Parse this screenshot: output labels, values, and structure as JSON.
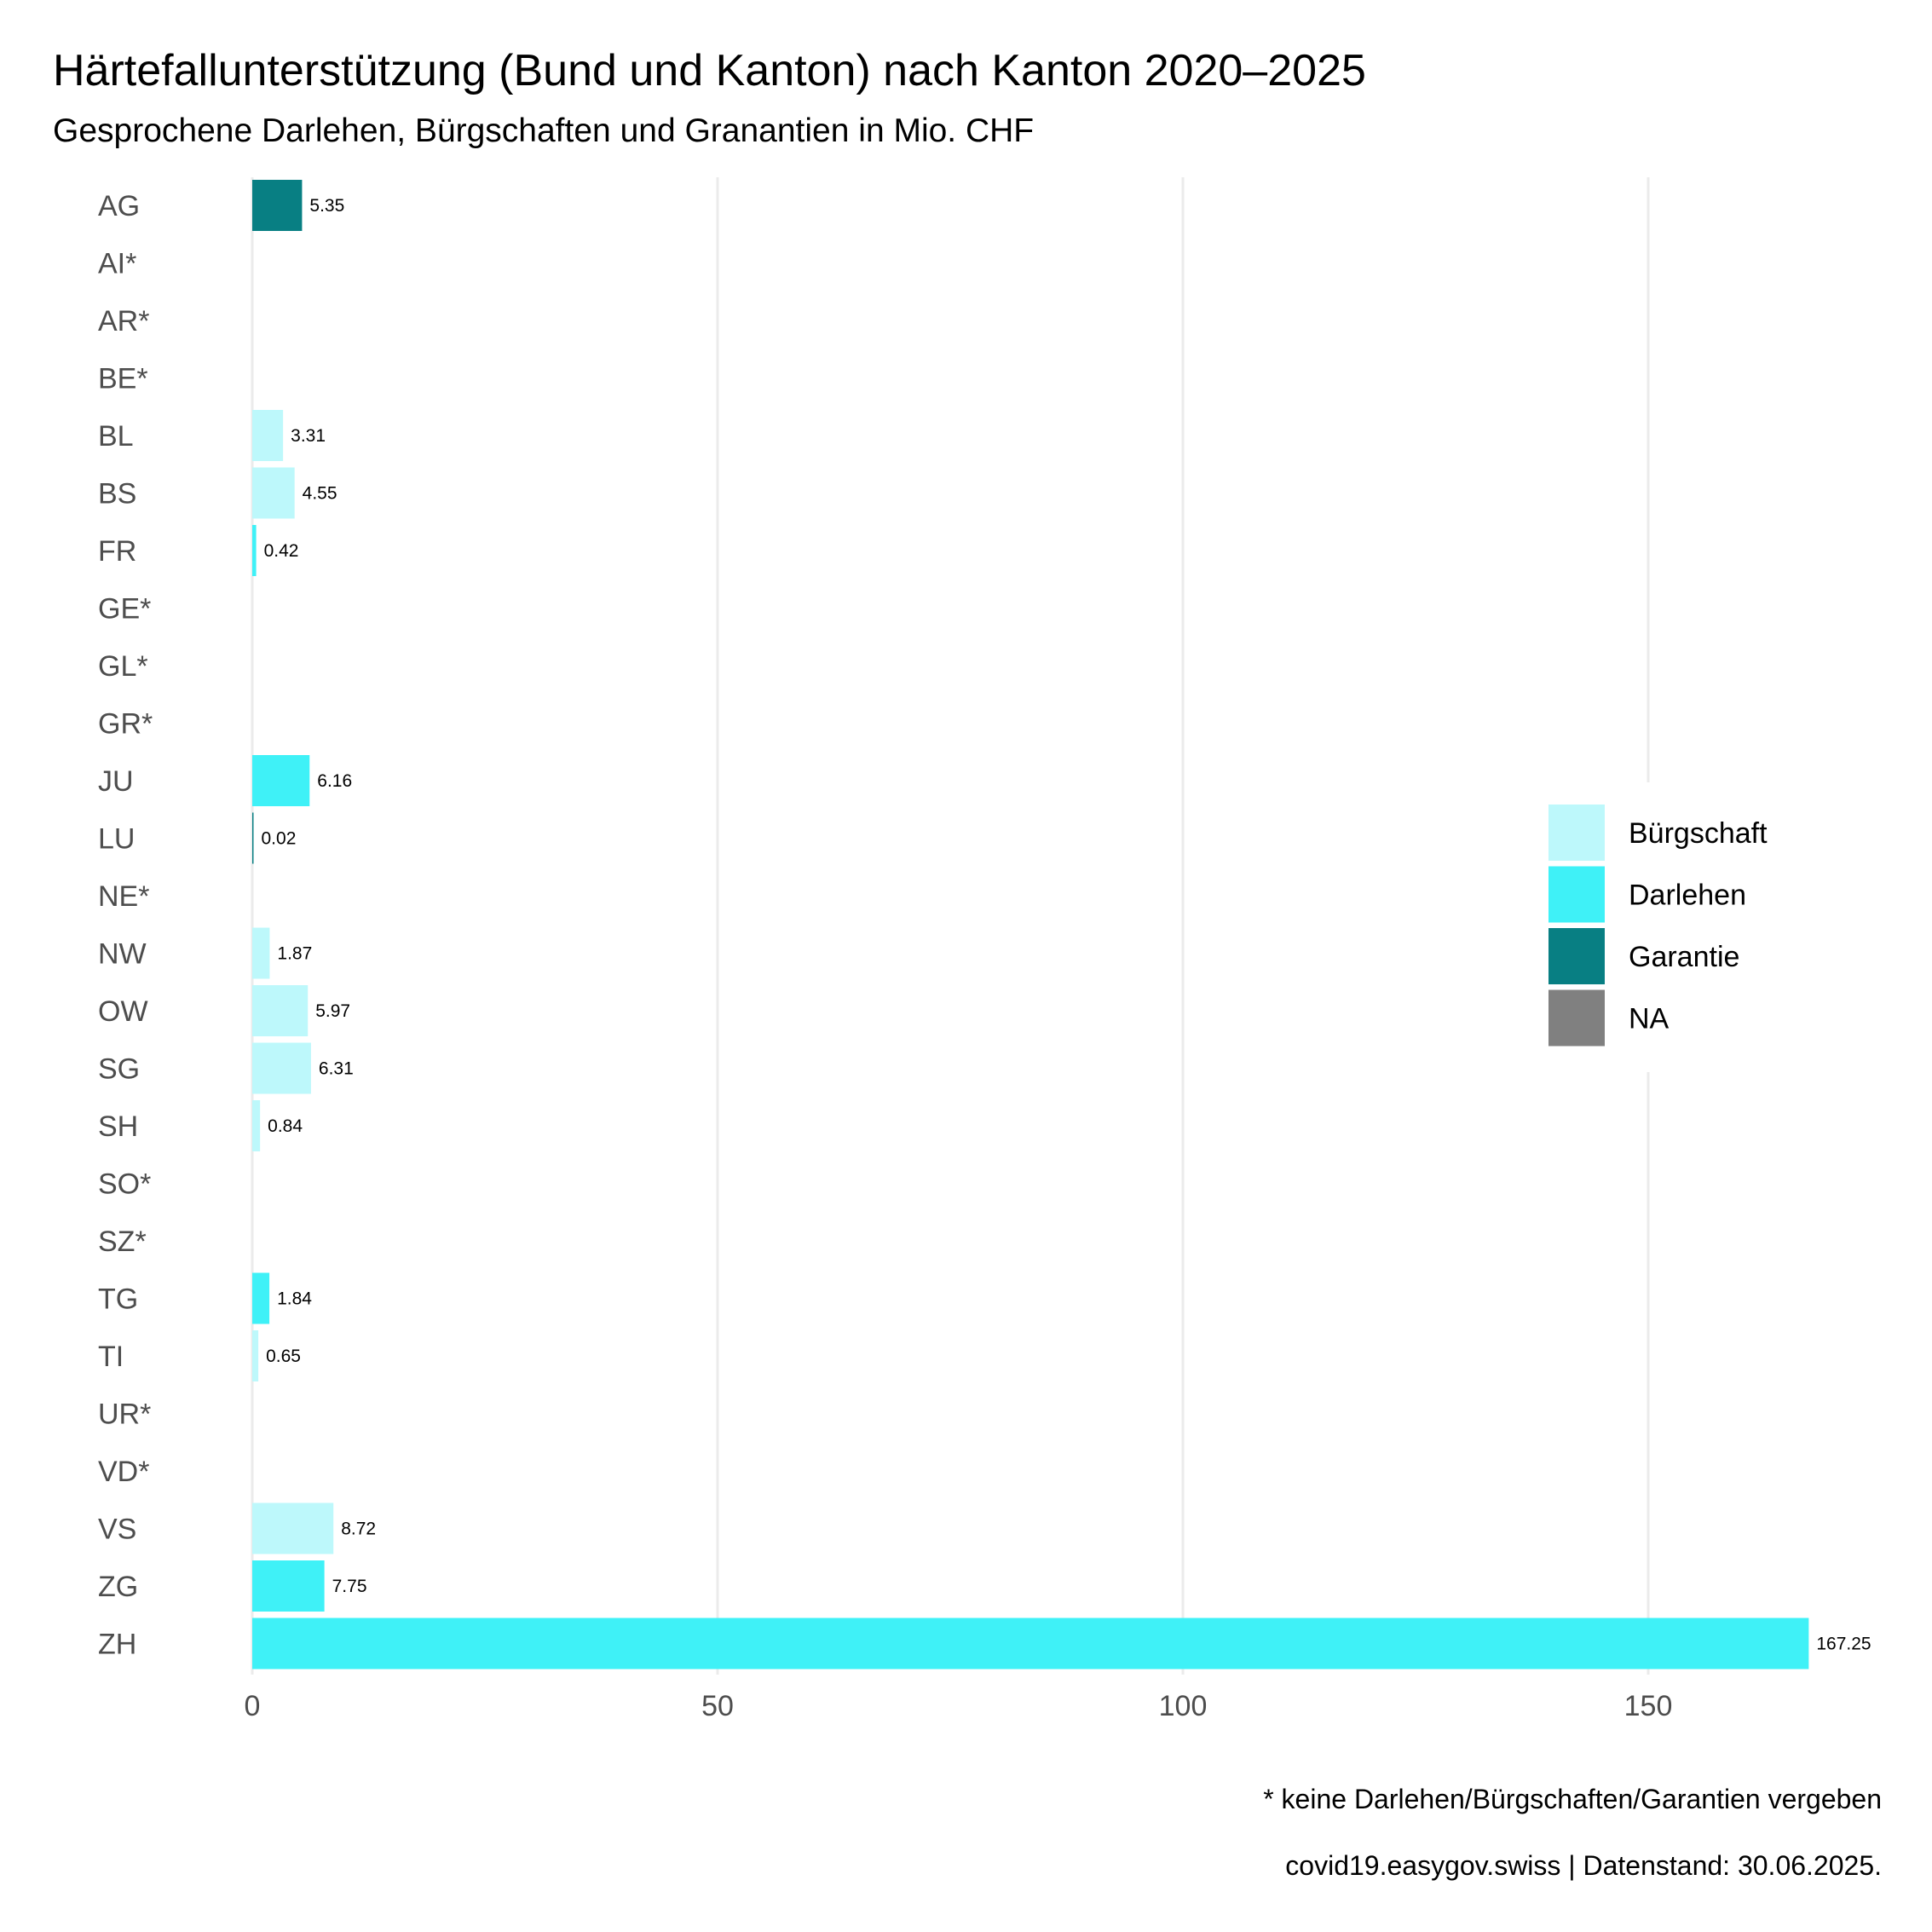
{
  "chart_data": {
    "type": "bar",
    "orientation": "horizontal",
    "title": "Härtefallunterstützung (Bund und Kanton) nach Kanton 2020–2025",
    "subtitle": "Gesprochene Darlehen, Bürgschaften und Granantien in Mio. CHF",
    "xlabel": "",
    "ylabel": "",
    "xlim": [
      0,
      170
    ],
    "xticks": [
      0,
      50,
      100,
      150
    ],
    "grid": true,
    "legend_position": "right",
    "legend": [
      {
        "name": "Bürgschaft",
        "color": "#bdf8fb"
      },
      {
        "name": "Darlehen",
        "color": "#3ff1f7"
      },
      {
        "name": "Garantie",
        "color": "#087f83"
      },
      {
        "name": "NA",
        "color": "#808080"
      }
    ],
    "categories": [
      "AG",
      "AI*",
      "AR*",
      "BE*",
      "BL",
      "BS",
      "FR",
      "GE*",
      "GL*",
      "GR*",
      "JU",
      "LU",
      "NE*",
      "NW",
      "OW",
      "SG",
      "SH",
      "SO*",
      "SZ*",
      "TG",
      "TI",
      "UR*",
      "VD*",
      "VS",
      "ZG",
      "ZH"
    ],
    "values": [
      5.35,
      null,
      null,
      null,
      3.31,
      4.55,
      0.42,
      null,
      null,
      null,
      6.16,
      0.02,
      null,
      1.87,
      5.97,
      6.31,
      0.84,
      null,
      null,
      1.84,
      0.65,
      null,
      null,
      8.72,
      7.75,
      167.25
    ],
    "value_labels": [
      "5.35",
      "",
      "",
      "",
      "3.31",
      "4.55",
      "0.42",
      "",
      "",
      "",
      "6.16",
      "0.02",
      "",
      "1.87",
      "5.97",
      "6.31",
      "0.84",
      "",
      "",
      "1.84",
      "0.65",
      "",
      "",
      "8.72",
      "7.75",
      "167.25"
    ],
    "types": [
      "Garantie",
      "NA",
      "NA",
      "NA",
      "Bürgschaft",
      "Bürgschaft",
      "Darlehen",
      "NA",
      "NA",
      "NA",
      "Darlehen",
      "Garantie",
      "NA",
      "Bürgschaft",
      "Bürgschaft",
      "Bürgschaft",
      "Bürgschaft",
      "NA",
      "NA",
      "Darlehen",
      "Bürgschaft",
      "NA",
      "NA",
      "Bürgschaft",
      "Darlehen",
      "Darlehen"
    ],
    "captions": [
      "* keine Darlehen/Bürgschaften/Garantien vergeben",
      "covid19.easygov.swiss | Datenstand: 30.06.2025."
    ]
  }
}
